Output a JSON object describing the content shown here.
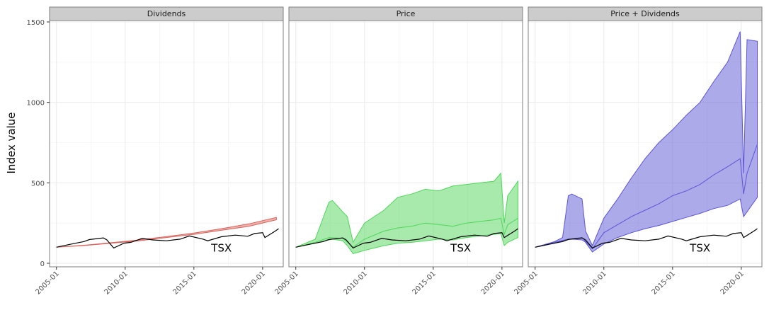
{
  "chart_data": {
    "type": "area",
    "ylabel": "Index value",
    "ylim": [
      0,
      1500
    ],
    "y_ticks": [
      0,
      500,
      1000,
      1500
    ],
    "x_range": [
      "2004-07",
      "2021-07"
    ],
    "x_ticks": [
      "2005-01",
      "2010-01",
      "2015-01",
      "2020-01"
    ],
    "grid": true,
    "annotation": "TSX",
    "colors": {
      "Dividends": "#d9645b",
      "Price": "#4fd65a",
      "Price + Dividends": "#5c55d6",
      "TSX": "#000000",
      "strip": "#cccccc"
    },
    "tsx_series": {
      "x": [
        "2005-01",
        "2006-01",
        "2007-01",
        "2007-06",
        "2008-06",
        "2008-09",
        "2009-03",
        "2009-12",
        "2010-06",
        "2011-04",
        "2012-01",
        "2013-01",
        "2014-01",
        "2014-09",
        "2015-09",
        "2016-01",
        "2017-01",
        "2018-01",
        "2018-12",
        "2019-06",
        "2020-01",
        "2020-03",
        "2020-12",
        "2021-03"
      ],
      "y": [
        100,
        118,
        135,
        148,
        158,
        145,
        95,
        125,
        130,
        155,
        145,
        140,
        150,
        170,
        150,
        140,
        165,
        175,
        168,
        185,
        190,
        160,
        200,
        215
      ]
    },
    "panels": [
      {
        "strip": "Dividends",
        "bands": [
          {
            "x": [
              "2005-01",
              "2007-01",
              "2009-01",
              "2011-01",
              "2013-01",
              "2015-01",
              "2017-01",
              "2019-01",
              "2021-01"
            ],
            "low": [
              100,
              110,
              125,
              140,
              160,
              180,
              205,
              230,
              270
            ],
            "high": [
              100,
              112,
              128,
              145,
              166,
              188,
              215,
              245,
              285
            ]
          }
        ],
        "lines": []
      },
      {
        "strip": "Price",
        "bands": [
          {
            "x": [
              "2005-01",
              "2006-06",
              "2007-06",
              "2007-09",
              "2008-06",
              "2008-10",
              "2009-03",
              "2010-01",
              "2011-06",
              "2012-06",
              "2013-06",
              "2014-06",
              "2015-06",
              "2016-06",
              "2017-06",
              "2018-06",
              "2019-06",
              "2019-12",
              "2020-03",
              "2020-06",
              "2021-03"
            ],
            "low": [
              100,
              125,
              145,
              150,
              140,
              110,
              60,
              80,
              110,
              125,
              130,
              140,
              150,
              145,
              160,
              170,
              180,
              185,
              110,
              130,
              160
            ],
            "high": [
              100,
              150,
              380,
              390,
              320,
              290,
              130,
              250,
              330,
              410,
              430,
              460,
              450,
              480,
              490,
              500,
              510,
              560,
              250,
              420,
              510
            ]
          }
        ],
        "lines": [
          {
            "x": [
              "2005-01",
              "2006-06",
              "2007-06",
              "2008-06",
              "2009-03",
              "2010-01",
              "2011-06",
              "2012-06",
              "2013-06",
              "2014-06",
              "2015-06",
              "2016-06",
              "2017-06",
              "2018-06",
              "2019-06",
              "2019-12",
              "2020-03",
              "2020-06",
              "2021-03"
            ],
            "y": [
              100,
              130,
              160,
              155,
              100,
              150,
              200,
              220,
              230,
              250,
              240,
              230,
              250,
              260,
              270,
              280,
              180,
              240,
              280
            ]
          }
        ]
      },
      {
        "strip": "Price +  Dividends",
        "bands": [
          {
            "x": [
              "2005-01",
              "2006-06",
              "2007-01",
              "2007-06",
              "2007-09",
              "2008-06",
              "2008-09",
              "2009-03",
              "2010-01",
              "2011-01",
              "2012-01",
              "2013-01",
              "2014-01",
              "2015-01",
              "2016-01",
              "2017-01",
              "2018-01",
              "2019-01",
              "2019-12",
              "2020-03",
              "2020-06",
              "2021-03"
            ],
            "low": [
              100,
              125,
              140,
              150,
              150,
              145,
              130,
              70,
              120,
              160,
              190,
              215,
              235,
              260,
              285,
              310,
              340,
              360,
              400,
              290,
              320,
              410
            ],
            "high": [
              100,
              135,
              160,
              420,
              430,
              400,
              200,
              110,
              280,
              400,
              530,
              650,
              750,
              830,
              920,
              1000,
              1130,
              1250,
              1440,
              560,
              1390,
              1380
            ]
          }
        ],
        "lines": [
          {
            "x": [
              "2005-01",
              "2006-06",
              "2007-06",
              "2008-06",
              "2009-03",
              "2010-01",
              "2011-01",
              "2012-01",
              "2013-01",
              "2014-01",
              "2015-01",
              "2016-01",
              "2017-01",
              "2018-01",
              "2019-01",
              "2019-12",
              "2020-03",
              "2020-06",
              "2021-03"
            ],
            "y": [
              100,
              130,
              150,
              160,
              90,
              190,
              240,
              290,
              330,
              370,
              420,
              450,
              490,
              550,
              600,
              650,
              430,
              560,
              740
            ]
          }
        ]
      }
    ]
  }
}
